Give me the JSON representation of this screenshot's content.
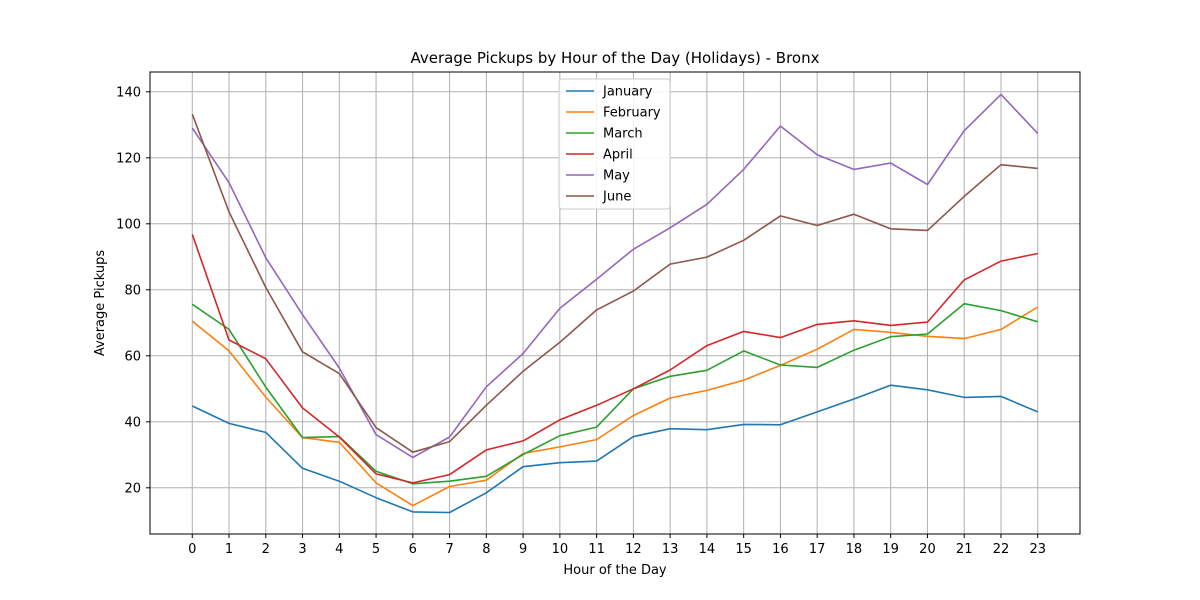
{
  "chart_data": {
    "type": "line",
    "title": "Average Pickups by Hour of the Day (Holidays) - Bronx",
    "xlabel": "Hour of the Day",
    "ylabel": "Average Pickups",
    "x": [
      0,
      1,
      2,
      3,
      4,
      5,
      6,
      7,
      8,
      9,
      10,
      11,
      12,
      13,
      14,
      15,
      16,
      17,
      18,
      19,
      20,
      21,
      22,
      23
    ],
    "xlim": [
      -1.15,
      24.15
    ],
    "ylim": [
      6,
      146
    ],
    "yticks": [
      20,
      40,
      60,
      80,
      100,
      120,
      140
    ],
    "grid": true,
    "legend_position": "upper center",
    "series": [
      {
        "name": "January",
        "color": "#1f77b4",
        "values": [
          44.8,
          39.5,
          36.8,
          25.9,
          22,
          17,
          12.7,
          12.5,
          18.5,
          26.4,
          27.6,
          28.1,
          35.5,
          37.9,
          37.6,
          39.2,
          39.1,
          43,
          46.9,
          51.1,
          49.7,
          47.4,
          47.7,
          43
        ]
      },
      {
        "name": "February",
        "color": "#ff7f0e",
        "values": [
          70.5,
          61.5,
          47.5,
          35.2,
          33.8,
          21.5,
          14.6,
          20.4,
          22.3,
          30.4,
          32.4,
          34.6,
          41.9,
          47.2,
          49.5,
          52.6,
          57.1,
          62,
          68,
          67.1,
          65.9,
          65.2,
          68,
          74.8
        ]
      },
      {
        "name": "March",
        "color": "#2ca02c",
        "values": [
          75.6,
          68,
          50.5,
          35.2,
          35.5,
          25,
          21.2,
          22,
          23.5,
          30.1,
          35.8,
          38.4,
          50,
          53.8,
          55.6,
          61.5,
          57.2,
          56.5,
          61.7,
          65.8,
          66.6,
          75.8,
          73.7,
          70.3
        ]
      },
      {
        "name": "April",
        "color": "#d62728",
        "values": [
          96.8,
          64.8,
          59.1,
          44.2,
          35.4,
          24.2,
          21.5,
          24,
          31.5,
          34.2,
          40.6,
          45,
          50,
          55.7,
          63.1,
          67.4,
          65.5,
          69.5,
          70.6,
          69.2,
          70.2,
          83,
          88.7,
          91
        ]
      },
      {
        "name": "May",
        "color": "#9467bd",
        "values": [
          129,
          112.5,
          89.7,
          72.5,
          56.3,
          36.1,
          29.2,
          35.4,
          50.6,
          60.7,
          74.4,
          83.2,
          92.3,
          98.8,
          105.9,
          116.5,
          129.6,
          120.9,
          116.5,
          118.4,
          111.9,
          128.2,
          139.2,
          127.4
        ]
      },
      {
        "name": "June",
        "color": "#8c564b",
        "values": [
          133.2,
          103.6,
          80.7,
          61.2,
          54.6,
          38.2,
          30.8,
          34,
          45,
          55.3,
          64.1,
          73.9,
          79.6,
          87.8,
          89.9,
          95,
          102.4,
          99.5,
          102.9,
          98.5,
          98,
          108.3,
          117.9,
          116.8
        ]
      }
    ]
  }
}
